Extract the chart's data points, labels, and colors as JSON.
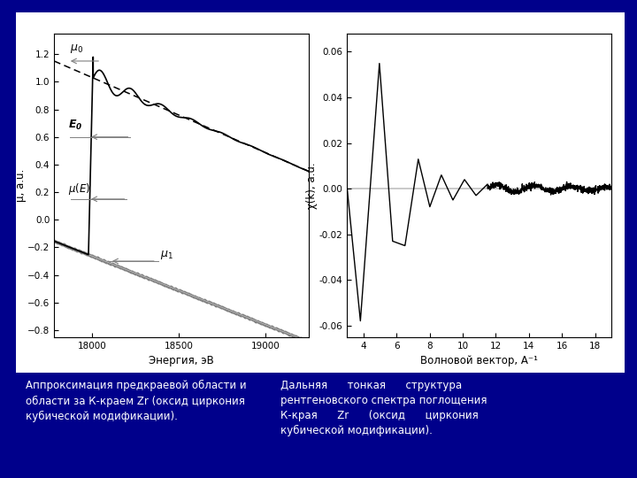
{
  "bg_color": "#00008B",
  "panel_color": "#ffffff",
  "left_caption": "Аппроксимация предкраевой области и\nобласти за К-краем Zr (оксид циркония\nкубической модификации).",
  "right_caption": "Дальняя      тонкая      структура\nрентгеновского спектра поглощения\nК-края      Zr      (оксид      циркония\nкубической модификации).",
  "left_xlabel": "Энергия, эВ",
  "left_ylabel": "μ, a.u.",
  "right_xlabel": "Волновой вектор, А⁻¹",
  "right_ylabel": "χ(k), a.u.",
  "left_xlim": [
    17780,
    19250
  ],
  "left_ylim": [
    -0.85,
    1.35
  ],
  "right_xlim": [
    3.0,
    19.0
  ],
  "right_ylim": [
    -0.065,
    0.068
  ],
  "left_xticks": [
    18000,
    18500,
    19000
  ],
  "left_yticks": [
    -0.8,
    -0.6,
    -0.4,
    -0.2,
    0.0,
    0.2,
    0.4,
    0.6,
    0.8,
    1.0,
    1.2
  ],
  "right_xticks": [
    4,
    6,
    8,
    10,
    12,
    14,
    16,
    18
  ],
  "right_yticks": [
    -0.06,
    -0.04,
    -0.02,
    0.0,
    0.02,
    0.04,
    0.06
  ]
}
